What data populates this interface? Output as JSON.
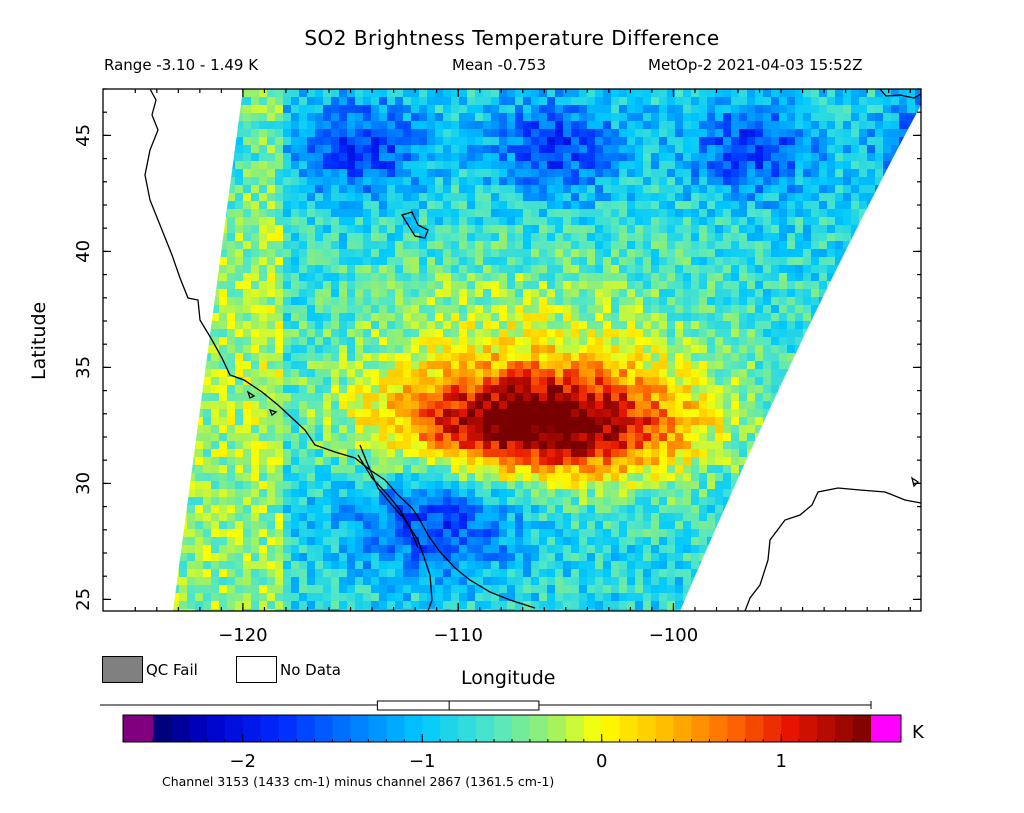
{
  "header": {
    "title": "SO2 Brightness Temperature Difference",
    "range": "Range -3.10 - 1.49 K",
    "mean": "Mean -0.753",
    "satellite": "MetOp-2 2021-04-03 15:52Z"
  },
  "axes": {
    "xlabel": "Longitude",
    "ylabel": "Latitude",
    "xticks": [
      -120,
      -110,
      -100
    ],
    "yticks": [
      25,
      30,
      35,
      40,
      45
    ],
    "xlim": [
      -126.5,
      -88.5
    ],
    "ylim": [
      24.5,
      47
    ]
  },
  "legend": {
    "qc_fail_label": "QC Fail",
    "qc_fail_color": "#808080",
    "no_data_label": "No Data",
    "no_data_color": "#ffffff"
  },
  "colorbar": {
    "units": "K",
    "ticks": [
      -2,
      -1,
      0,
      1
    ],
    "range": [
      -2.5,
      1.5
    ],
    "under_color": "#800080",
    "over_color": "#ff00ff",
    "boxplot": {
      "whisker_low": -2.5,
      "q1": -1.25,
      "median": -0.85,
      "q3": -0.35,
      "whisker_high": 1.5
    }
  },
  "footnote": "Channel 3153 (1433 cm-1) minus channel 2867 (1361.5 cm-1)",
  "map_data": {
    "plume": {
      "center": [
        -106,
        32.5
      ],
      "peak_value": 1.4
    },
    "low_region": {
      "center": [
        -111,
        28.5
      ],
      "value": -1.9
    },
    "background_value": -0.8
  }
}
